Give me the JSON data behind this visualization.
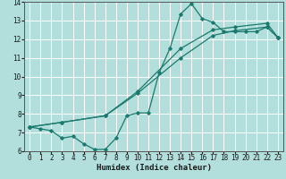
{
  "xlabel": "Humidex (Indice chaleur)",
  "ylabel": "",
  "xlim": [
    -0.5,
    23.5
  ],
  "ylim": [
    6,
    14
  ],
  "xticks": [
    0,
    1,
    2,
    3,
    4,
    5,
    6,
    7,
    8,
    9,
    10,
    11,
    12,
    13,
    14,
    15,
    16,
    17,
    18,
    19,
    20,
    21,
    22,
    23
  ],
  "yticks": [
    6,
    7,
    8,
    9,
    10,
    11,
    12,
    13,
    14
  ],
  "background_color": "#b2dfdb",
  "grid_color": "#ffffff",
  "line_color": "#1a7a6e",
  "line1_x": [
    0,
    1,
    2,
    3,
    4,
    5,
    6,
    7,
    8,
    9,
    10,
    11,
    12,
    13,
    14,
    15,
    16,
    17,
    18,
    19,
    20,
    21,
    22,
    23
  ],
  "line1_y": [
    7.3,
    7.2,
    7.1,
    6.7,
    6.8,
    6.4,
    6.1,
    6.1,
    6.7,
    7.9,
    8.05,
    8.05,
    10.2,
    11.5,
    13.35,
    13.9,
    13.1,
    12.9,
    12.4,
    12.4,
    12.4,
    12.4,
    12.65,
    12.1
  ],
  "line2_x": [
    0,
    3,
    7,
    10,
    14,
    17,
    19,
    22,
    23
  ],
  "line2_y": [
    7.3,
    7.55,
    7.9,
    9.1,
    11.0,
    12.2,
    12.45,
    12.65,
    12.1
  ],
  "line3_x": [
    0,
    3,
    7,
    10,
    14,
    17,
    19,
    22,
    23
  ],
  "line3_y": [
    7.3,
    7.55,
    7.9,
    9.2,
    11.5,
    12.5,
    12.65,
    12.85,
    12.1
  ]
}
